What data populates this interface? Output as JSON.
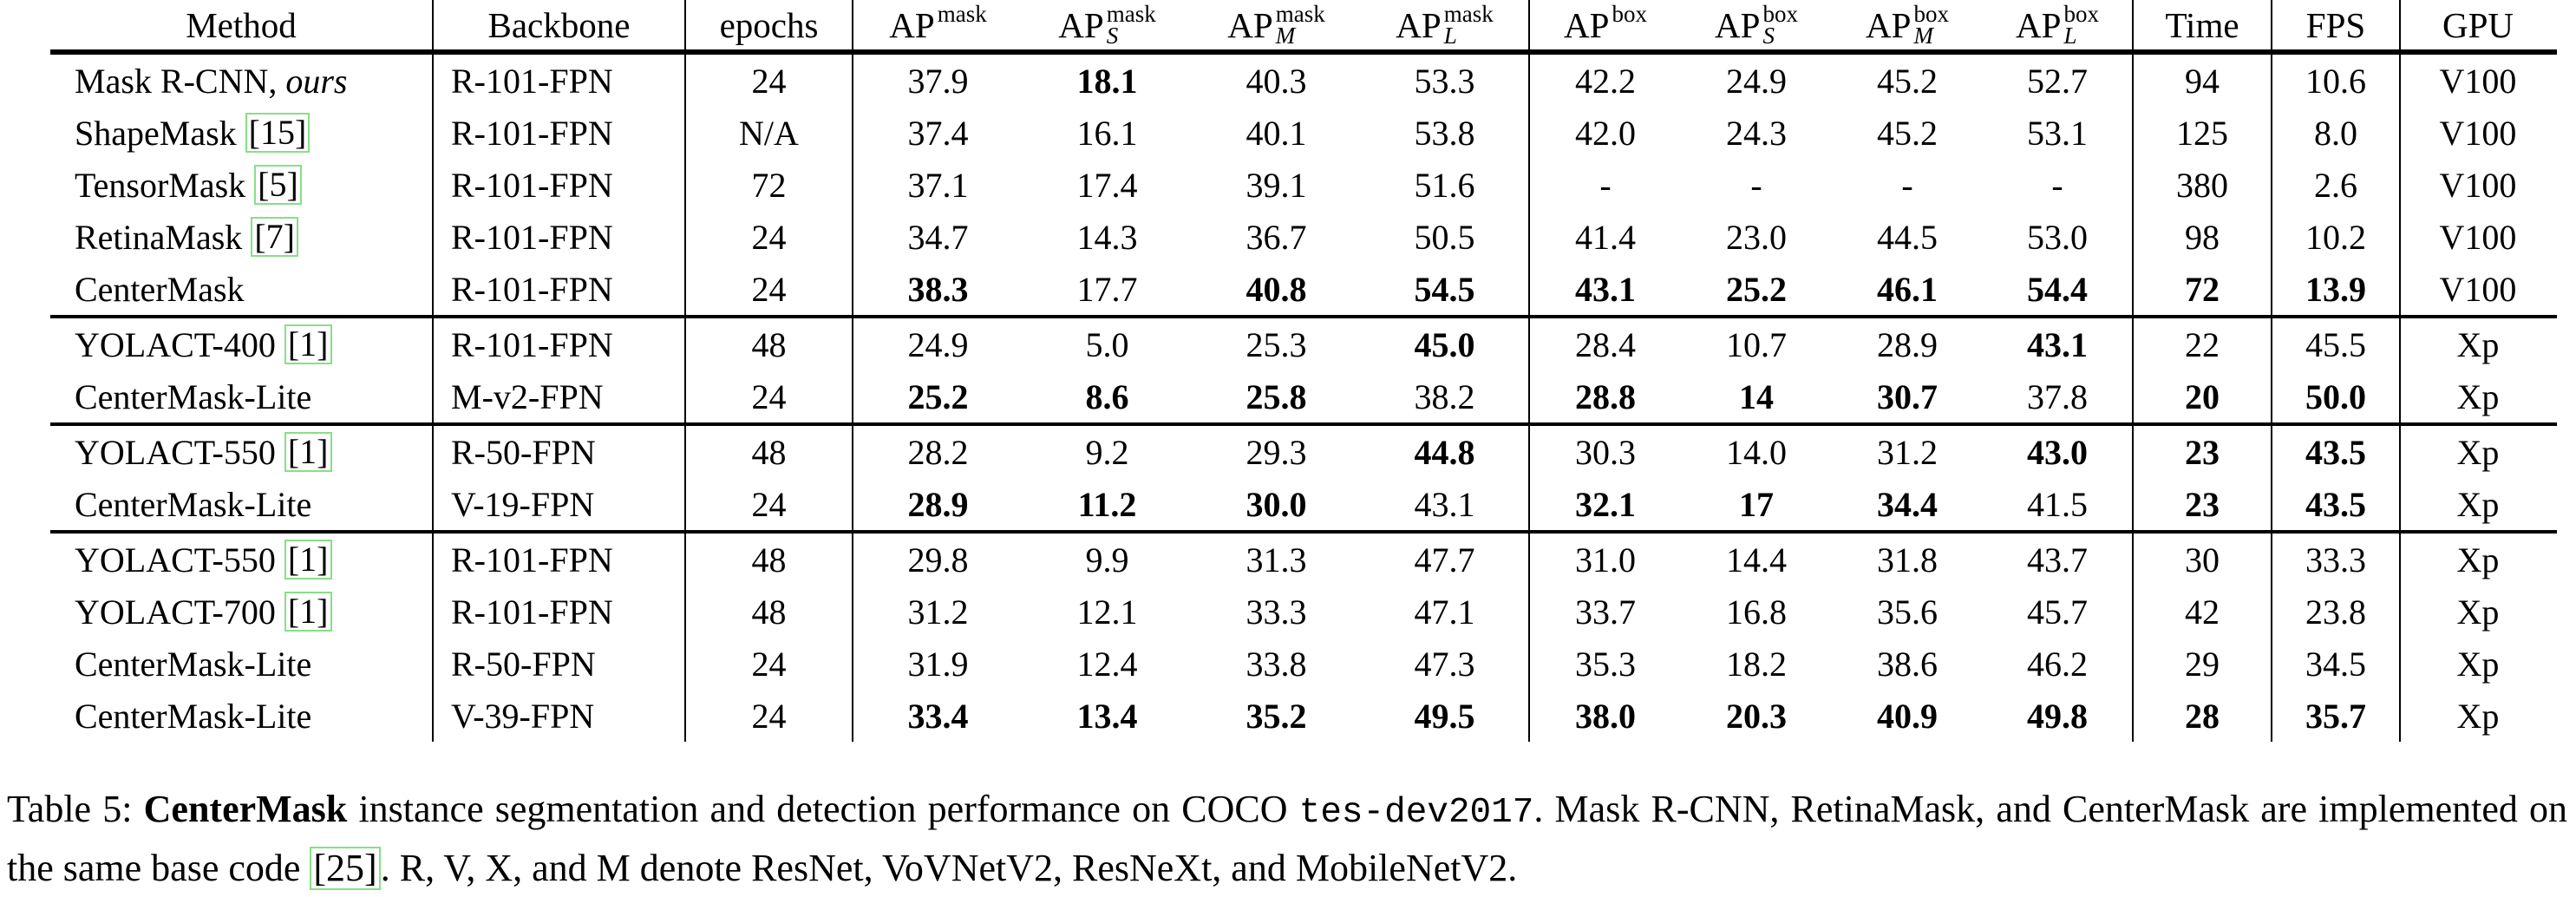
{
  "colors": {
    "citation_box": "#86e086",
    "text": "#000000",
    "background": "#ffffff"
  },
  "table": {
    "columns": [
      {
        "key": "method",
        "label": "Method"
      },
      {
        "key": "backbone",
        "label": "Backbone"
      },
      {
        "key": "epochs",
        "label": "epochs"
      },
      {
        "key": "ap_mask",
        "base": "AP",
        "sup": "mask",
        "sub": ""
      },
      {
        "key": "ap_s_mask",
        "base": "AP",
        "sup": "mask",
        "sub": "S"
      },
      {
        "key": "ap_m_mask",
        "base": "AP",
        "sup": "mask",
        "sub": "M"
      },
      {
        "key": "ap_l_mask",
        "base": "AP",
        "sup": "mask",
        "sub": "L"
      },
      {
        "key": "ap_box",
        "base": "AP",
        "sup": "box",
        "sub": ""
      },
      {
        "key": "ap_s_box",
        "base": "AP",
        "sup": "box",
        "sub": "S"
      },
      {
        "key": "ap_m_box",
        "base": "AP",
        "sup": "box",
        "sub": "M"
      },
      {
        "key": "ap_l_box",
        "base": "AP",
        "sup": "box",
        "sub": "L"
      },
      {
        "key": "time",
        "label": "Time"
      },
      {
        "key": "fps",
        "label": "FPS"
      },
      {
        "key": "gpu",
        "label": "GPU"
      }
    ],
    "value_keys": [
      "ap_mask",
      "ap_s_mask",
      "ap_m_mask",
      "ap_l_mask",
      "ap_box",
      "ap_s_box",
      "ap_m_box",
      "ap_l_box",
      "time",
      "fps",
      "gpu"
    ],
    "groups": [
      {
        "rows": [
          {
            "method": "Mask R-CNN,",
            "method_italic": "ours",
            "citation": "",
            "backbone": "R-101-FPN",
            "epochs": "24",
            "values": {
              "ap_mask": "37.9",
              "ap_s_mask": "18.1",
              "ap_m_mask": "40.3",
              "ap_l_mask": "53.3",
              "ap_box": "42.2",
              "ap_s_box": "24.9",
              "ap_m_box": "45.2",
              "ap_l_box": "52.7",
              "time": "94",
              "fps": "10.6",
              "gpu": "V100"
            },
            "bold": [
              "ap_s_mask"
            ]
          },
          {
            "method": "ShapeMask",
            "method_italic": "",
            "citation": "[15]",
            "backbone": "R-101-FPN",
            "epochs": "N/A",
            "values": {
              "ap_mask": "37.4",
              "ap_s_mask": "16.1",
              "ap_m_mask": "40.1",
              "ap_l_mask": "53.8",
              "ap_box": "42.0",
              "ap_s_box": "24.3",
              "ap_m_box": "45.2",
              "ap_l_box": "53.1",
              "time": "125",
              "fps": "8.0",
              "gpu": "V100"
            },
            "bold": []
          },
          {
            "method": "TensorMask",
            "method_italic": "",
            "citation": "[5]",
            "backbone": "R-101-FPN",
            "epochs": "72",
            "values": {
              "ap_mask": "37.1",
              "ap_s_mask": "17.4",
              "ap_m_mask": "39.1",
              "ap_l_mask": "51.6",
              "ap_box": "-",
              "ap_s_box": "-",
              "ap_m_box": "-",
              "ap_l_box": "-",
              "time": "380",
              "fps": "2.6",
              "gpu": "V100"
            },
            "bold": []
          },
          {
            "method": "RetinaMask",
            "method_italic": "",
            "citation": "[7]",
            "backbone": "R-101-FPN",
            "epochs": "24",
            "values": {
              "ap_mask": "34.7",
              "ap_s_mask": "14.3",
              "ap_m_mask": "36.7",
              "ap_l_mask": "50.5",
              "ap_box": "41.4",
              "ap_s_box": "23.0",
              "ap_m_box": "44.5",
              "ap_l_box": "53.0",
              "time": "98",
              "fps": "10.2",
              "gpu": "V100"
            },
            "bold": []
          },
          {
            "method": "CenterMask",
            "method_italic": "",
            "citation": "",
            "backbone": "R-101-FPN",
            "epochs": "24",
            "values": {
              "ap_mask": "38.3",
              "ap_s_mask": "17.7",
              "ap_m_mask": "40.8",
              "ap_l_mask": "54.5",
              "ap_box": "43.1",
              "ap_s_box": "25.2",
              "ap_m_box": "46.1",
              "ap_l_box": "54.4",
              "time": "72",
              "fps": "13.9",
              "gpu": "V100"
            },
            "bold": [
              "ap_mask",
              "ap_m_mask",
              "ap_l_mask",
              "ap_box",
              "ap_s_box",
              "ap_m_box",
              "ap_l_box",
              "time",
              "fps"
            ]
          }
        ]
      },
      {
        "rows": [
          {
            "method": "YOLACT-400",
            "method_italic": "",
            "citation": "[1]",
            "backbone": "R-101-FPN",
            "epochs": "48",
            "values": {
              "ap_mask": "24.9",
              "ap_s_mask": "5.0",
              "ap_m_mask": "25.3",
              "ap_l_mask": "45.0",
              "ap_box": "28.4",
              "ap_s_box": "10.7",
              "ap_m_box": "28.9",
              "ap_l_box": "43.1",
              "time": "22",
              "fps": "45.5",
              "gpu": "Xp"
            },
            "bold": [
              "ap_l_mask",
              "ap_l_box"
            ]
          },
          {
            "method": "CenterMask-Lite",
            "method_italic": "",
            "citation": "",
            "backbone": "M-v2-FPN",
            "epochs": "24",
            "values": {
              "ap_mask": "25.2",
              "ap_s_mask": "8.6",
              "ap_m_mask": "25.8",
              "ap_l_mask": "38.2",
              "ap_box": "28.8",
              "ap_s_box": "14",
              "ap_m_box": "30.7",
              "ap_l_box": "37.8",
              "time": "20",
              "fps": "50.0",
              "gpu": "Xp"
            },
            "bold": [
              "ap_mask",
              "ap_s_mask",
              "ap_m_mask",
              "ap_box",
              "ap_s_box",
              "ap_m_box",
              "time",
              "fps"
            ]
          }
        ]
      },
      {
        "rows": [
          {
            "method": "YOLACT-550",
            "method_italic": "",
            "citation": "[1]",
            "backbone": "R-50-FPN",
            "epochs": "48",
            "values": {
              "ap_mask": "28.2",
              "ap_s_mask": "9.2",
              "ap_m_mask": "29.3",
              "ap_l_mask": "44.8",
              "ap_box": "30.3",
              "ap_s_box": "14.0",
              "ap_m_box": "31.2",
              "ap_l_box": "43.0",
              "time": "23",
              "fps": "43.5",
              "gpu": "Xp"
            },
            "bold": [
              "ap_l_mask",
              "ap_l_box",
              "time",
              "fps"
            ]
          },
          {
            "method": "CenterMask-Lite",
            "method_italic": "",
            "citation": "",
            "backbone": "V-19-FPN",
            "epochs": "24",
            "values": {
              "ap_mask": "28.9",
              "ap_s_mask": "11.2",
              "ap_m_mask": "30.0",
              "ap_l_mask": "43.1",
              "ap_box": "32.1",
              "ap_s_box": "17",
              "ap_m_box": "34.4",
              "ap_l_box": "41.5",
              "time": "23",
              "fps": "43.5",
              "gpu": "Xp"
            },
            "bold": [
              "ap_mask",
              "ap_s_mask",
              "ap_m_mask",
              "ap_box",
              "ap_s_box",
              "ap_m_box",
              "time",
              "fps"
            ]
          }
        ]
      },
      {
        "rows": [
          {
            "method": "YOLACT-550",
            "method_italic": "",
            "citation": "[1]",
            "backbone": "R-101-FPN",
            "epochs": "48",
            "values": {
              "ap_mask": "29.8",
              "ap_s_mask": "9.9",
              "ap_m_mask": "31.3",
              "ap_l_mask": "47.7",
              "ap_box": "31.0",
              "ap_s_box": "14.4",
              "ap_m_box": "31.8",
              "ap_l_box": "43.7",
              "time": "30",
              "fps": "33.3",
              "gpu": "Xp"
            },
            "bold": []
          },
          {
            "method": "YOLACT-700",
            "method_italic": "",
            "citation": "[1]",
            "backbone": "R-101-FPN",
            "epochs": "48",
            "values": {
              "ap_mask": "31.2",
              "ap_s_mask": "12.1",
              "ap_m_mask": "33.3",
              "ap_l_mask": "47.1",
              "ap_box": "33.7",
              "ap_s_box": "16.8",
              "ap_m_box": "35.6",
              "ap_l_box": "45.7",
              "time": "42",
              "fps": "23.8",
              "gpu": "Xp"
            },
            "bold": []
          },
          {
            "method": "CenterMask-Lite",
            "method_italic": "",
            "citation": "",
            "backbone": "R-50-FPN",
            "epochs": "24",
            "values": {
              "ap_mask": "31.9",
              "ap_s_mask": "12.4",
              "ap_m_mask": "33.8",
              "ap_l_mask": "47.3",
              "ap_box": "35.3",
              "ap_s_box": "18.2",
              "ap_m_box": "38.6",
              "ap_l_box": "46.2",
              "time": "29",
              "fps": "34.5",
              "gpu": "Xp"
            },
            "bold": []
          },
          {
            "method": "CenterMask-Lite",
            "method_italic": "",
            "citation": "",
            "backbone": "V-39-FPN",
            "epochs": "24",
            "values": {
              "ap_mask": "33.4",
              "ap_s_mask": "13.4",
              "ap_m_mask": "35.2",
              "ap_l_mask": "49.5",
              "ap_box": "38.0",
              "ap_s_box": "20.3",
              "ap_m_box": "40.9",
              "ap_l_box": "49.8",
              "time": "28",
              "fps": "35.7",
              "gpu": "Xp"
            },
            "bold": [
              "ap_mask",
              "ap_s_mask",
              "ap_m_mask",
              "ap_l_mask",
              "ap_box",
              "ap_s_box",
              "ap_m_box",
              "ap_l_box",
              "time",
              "fps"
            ]
          }
        ]
      }
    ]
  },
  "caption": {
    "label": "Table 5:",
    "bold_term": "CenterMask",
    "text1": "instance segmentation and detection performance on COCO",
    "mono": "tes-dev2017",
    "text2": ". Mask R-CNN, RetinaMask, and CenterMask are implemented on the same base code",
    "cite": "[25]",
    "text3": ". R, V, X, and M denote ResNet, VoVNetV2, ResNeXt, and MobileNetV2."
  }
}
